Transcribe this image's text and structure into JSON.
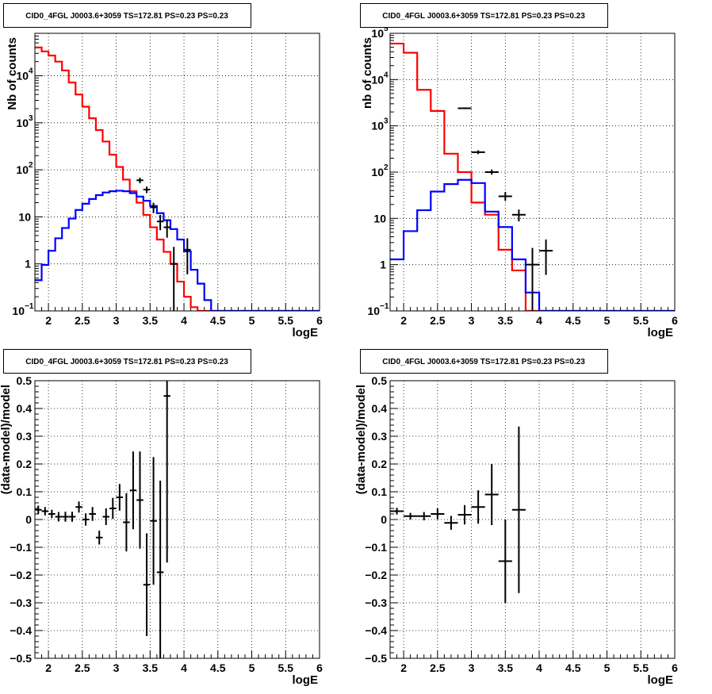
{
  "chart_data": [
    {
      "type": "histogram",
      "title": "CID0_4FGL J0003.6+3059 TS=172.81 PS=0.23 PS=0.23",
      "xlabel": "logE",
      "ylabel": "Nb of counts",
      "yscale": "log",
      "xlim": [
        1.8,
        6.0
      ],
      "ylim": [
        0.1,
        80000
      ],
      "grid": true,
      "xticks": [
        "2",
        "2.5",
        "3",
        "3.5",
        "4",
        "4.5",
        "5",
        "5.5",
        "6"
      ],
      "yticks": [
        {
          "v": 0.1,
          "base": "10",
          "exp": "−1"
        },
        {
          "v": 1,
          "base": "1",
          "exp": ""
        },
        {
          "v": 10,
          "base": "10",
          "exp": ""
        },
        {
          "v": 100,
          "base": "10",
          "exp": "2"
        },
        {
          "v": 1000,
          "base": "10",
          "exp": "3"
        },
        {
          "v": 10000,
          "base": "10",
          "exp": "4"
        }
      ],
      "bin_edges_start": 1.8,
      "bin_width": 0.1,
      "series": [
        {
          "color": "#ff0000",
          "kind": "step",
          "values": [
            40000,
            33000,
            27000,
            20000,
            13000,
            7200,
            4000,
            2200,
            1250,
            700,
            400,
            210,
            115,
            62,
            35,
            20,
            11,
            6.0,
            3.3,
            1.8,
            1.0,
            0.42,
            0.2,
            0.12,
            0.1,
            0.1,
            0.1,
            0.1,
            0.1,
            0.1,
            0.1,
            0.1,
            0.1,
            0.1,
            0.1,
            0.1,
            0.1,
            0.1,
            0.1,
            0.1,
            0.1,
            0.1
          ]
        },
        {
          "color": "#0000ff",
          "kind": "step",
          "values": [
            0.45,
            0.95,
            1.9,
            3.5,
            5.8,
            9.2,
            14.0,
            19.0,
            24.0,
            29.0,
            33.0,
            35.0,
            36.0,
            35.0,
            32.0,
            27.0,
            22.0,
            17.0,
            12.0,
            8.5,
            5.5,
            3.3,
            1.85,
            0.75,
            0.38,
            0.17,
            0.1,
            0.1,
            0.1,
            0.1,
            0.1,
            0.1,
            0.1,
            0.1,
            0.1,
            0.1,
            0.1,
            0.1,
            0.1,
            0.1,
            0.1,
            0.1
          ]
        },
        {
          "color": "#000000",
          "kind": "errorbar",
          "points": [
            {
              "x": 3.35,
              "y": 60,
              "lo": 52,
              "hi": 68
            },
            {
              "x": 3.45,
              "y": 38,
              "lo": 32,
              "hi": 44
            },
            {
              "x": 3.55,
              "y": 16,
              "lo": 12,
              "hi": 20
            },
            {
              "x": 3.65,
              "y": 8,
              "lo": 5.2,
              "hi": 11
            },
            {
              "x": 3.75,
              "y": 6,
              "lo": 3.6,
              "hi": 8.5
            },
            {
              "x": 3.85,
              "y": 1,
              "lo": 0.1,
              "hi": 2.3
            },
            {
              "x": 4.05,
              "y": 2,
              "lo": 0.6,
              "hi": 3.5
            }
          ]
        }
      ]
    },
    {
      "type": "histogram",
      "title": "CID0_4FGL J0003.6+3059 TS=172.81 PS=0.23 PS=0.23",
      "xlabel": "logE",
      "ylabel": "nb of counts",
      "yscale": "log",
      "xlim": [
        1.8,
        6.0
      ],
      "ylim": [
        0.1,
        100000
      ],
      "grid": true,
      "xticks": [
        "2",
        "2.5",
        "3",
        "3.5",
        "4",
        "4.5",
        "5",
        "5.5",
        "6"
      ],
      "yticks": [
        {
          "v": 0.1,
          "base": "10",
          "exp": "−1"
        },
        {
          "v": 1,
          "base": "1",
          "exp": ""
        },
        {
          "v": 10,
          "base": "10",
          "exp": ""
        },
        {
          "v": 100,
          "base": "10",
          "exp": "2"
        },
        {
          "v": 1000,
          "base": "10",
          "exp": "3"
        },
        {
          "v": 10000,
          "base": "10",
          "exp": "4"
        },
        {
          "v": 100000,
          "base": "10",
          "exp": "5"
        }
      ],
      "bin_edges_start": 1.8,
      "bin_width": 0.2,
      "series": [
        {
          "color": "#ff0000",
          "kind": "step",
          "values": [
            60000,
            38000,
            6000,
            2100,
            250,
            100,
            22,
            12,
            2.1,
            0.75,
            0.1,
            0.1,
            0.1,
            0.1,
            0.1,
            0.1,
            0.1,
            0.1,
            0.1,
            0.1,
            0.1
          ]
        },
        {
          "color": "#0000ff",
          "kind": "step",
          "values": [
            1.3,
            5.3,
            15,
            38,
            55,
            68,
            58,
            14,
            6.5,
            1.3,
            0.25,
            0.1,
            0.1,
            0.1,
            0.1,
            0.1,
            0.1,
            0.1,
            0.1,
            0.1,
            0.1
          ]
        },
        {
          "color": "#000000",
          "kind": "errorbar",
          "points": [
            {
              "x": 2.9,
              "y": 2400,
              "lo": 2300,
              "hi": 2500
            },
            {
              "x": 3.1,
              "y": 270,
              "lo": 245,
              "hi": 295
            },
            {
              "x": 3.3,
              "y": 100,
              "lo": 88,
              "hi": 114
            },
            {
              "x": 3.5,
              "y": 30,
              "lo": 24,
              "hi": 37
            },
            {
              "x": 3.7,
              "y": 12,
              "lo": 8.6,
              "hi": 15.5
            },
            {
              "x": 3.9,
              "y": 1,
              "lo": 0.1,
              "hi": 2.3
            },
            {
              "x": 4.1,
              "y": 2,
              "lo": 0.6,
              "hi": 3.5
            }
          ]
        }
      ]
    },
    {
      "type": "scatter",
      "title": "CID0_4FGL J0003.6+3059 TS=172.81 PS=0.23 PS=0.23",
      "xlabel": "logE",
      "ylabel": "(data-model)/model",
      "yscale": "linear",
      "xlim": [
        1.8,
        6.0
      ],
      "ylim": [
        -0.5,
        0.5
      ],
      "grid": true,
      "xticks": [
        "2",
        "2.5",
        "3",
        "3.5",
        "4",
        "4.5",
        "5",
        "5.5",
        "6"
      ],
      "yticks": [
        "−0.5",
        "−0.4",
        "−0.3",
        "−0.2",
        "−0.1",
        "0",
        "0.1",
        "0.2",
        "0.3",
        "0.4",
        "0.5"
      ],
      "xerr": 0.05,
      "points": [
        {
          "x": 1.85,
          "y": 0.035,
          "err": 0.015
        },
        {
          "x": 1.95,
          "y": 0.03,
          "err": 0.015
        },
        {
          "x": 2.05,
          "y": 0.02,
          "err": 0.015
        },
        {
          "x": 2.15,
          "y": 0.01,
          "err": 0.017
        },
        {
          "x": 2.25,
          "y": 0.01,
          "err": 0.018
        },
        {
          "x": 2.35,
          "y": 0.01,
          "err": 0.018
        },
        {
          "x": 2.45,
          "y": 0.045,
          "err": 0.02
        },
        {
          "x": 2.55,
          "y": 0.0,
          "err": 0.022
        },
        {
          "x": 2.65,
          "y": 0.02,
          "err": 0.025
        },
        {
          "x": 2.75,
          "y": -0.065,
          "err": 0.025
        },
        {
          "x": 2.85,
          "y": 0.01,
          "err": 0.03
        },
        {
          "x": 2.95,
          "y": 0.04,
          "err": 0.038
        },
        {
          "x": 3.05,
          "y": 0.08,
          "err": 0.048
        },
        {
          "x": 3.15,
          "y": -0.01,
          "err": 0.105
        },
        {
          "x": 3.25,
          "y": 0.105,
          "err": 0.14
        },
        {
          "x": 3.35,
          "y": 0.07,
          "err": 0.175
        },
        {
          "x": 3.45,
          "y": -0.235,
          "err": 0.185
        },
        {
          "x": 3.55,
          "y": -0.005,
          "err": 0.23
        },
        {
          "x": 3.65,
          "y": -0.19,
          "err": 0.33
        },
        {
          "x": 3.75,
          "y": 0.445,
          "err": 0.6
        }
      ]
    },
    {
      "type": "scatter",
      "title": "CID0_4FGL J0003.6+3059 TS=172.81 PS=0.23 PS=0.23",
      "xlabel": "logE",
      "ylabel": "(data-model)/model",
      "yscale": "linear",
      "xlim": [
        1.8,
        6.0
      ],
      "ylim": [
        -0.5,
        0.5
      ],
      "grid": true,
      "xticks": [
        "2",
        "2.5",
        "3",
        "3.5",
        "4",
        "4.5",
        "5",
        "5.5",
        "6"
      ],
      "yticks": [
        "−0.5",
        "−0.4",
        "−0.3",
        "−0.2",
        "−0.1",
        "0",
        "0.1",
        "0.2",
        "0.3",
        "0.4",
        "0.5"
      ],
      "xerr": 0.1,
      "points": [
        {
          "x": 1.9,
          "y": 0.03,
          "err": 0.012
        },
        {
          "x": 2.1,
          "y": 0.012,
          "err": 0.012
        },
        {
          "x": 2.3,
          "y": 0.012,
          "err": 0.015
        },
        {
          "x": 2.5,
          "y": 0.02,
          "err": 0.02
        },
        {
          "x": 2.7,
          "y": -0.012,
          "err": 0.025
        },
        {
          "x": 2.9,
          "y": 0.017,
          "err": 0.035
        },
        {
          "x": 3.1,
          "y": 0.045,
          "err": 0.06
        },
        {
          "x": 3.3,
          "y": 0.09,
          "err": 0.11
        },
        {
          "x": 3.5,
          "y": -0.15,
          "err": 0.15
        },
        {
          "x": 3.7,
          "y": 0.035,
          "err": 0.3
        }
      ]
    }
  ]
}
